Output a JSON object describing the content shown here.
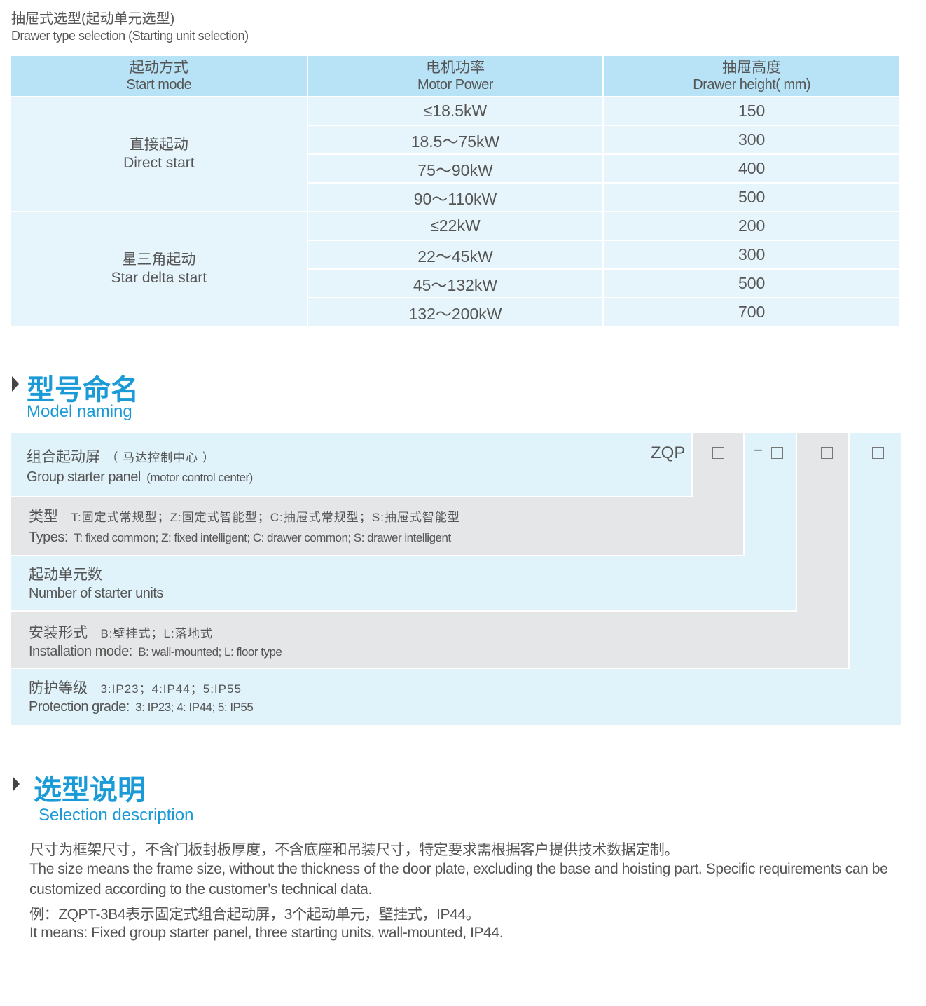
{
  "intro": {
    "title_cn": "抽屉式选型(起动单元选型)",
    "title_en": "Drawer type selection (Starting unit selection)"
  },
  "table": {
    "headers": [
      {
        "cn": "起动方式",
        "en": "Start mode"
      },
      {
        "cn": "电机功率",
        "en": "Motor Power"
      },
      {
        "cn": "抽屉高度",
        "en": "Drawer height( mm)"
      }
    ],
    "groups": [
      {
        "cn": "直接起动",
        "en": "Direct start",
        "rows": [
          [
            "≤18.5kW",
            "150"
          ],
          [
            "18.5～75kW",
            "300"
          ],
          [
            "75～90kW",
            "400"
          ],
          [
            "90～110kW",
            "500"
          ]
        ]
      },
      {
        "cn": "星三角起动",
        "en": "Star delta start",
        "rows": [
          [
            "≤22kW",
            "200"
          ],
          [
            "22～45kW",
            "300"
          ],
          [
            "45～132kW",
            "500"
          ],
          [
            "132～200kW",
            "700"
          ]
        ]
      }
    ]
  },
  "model_naming": {
    "title_cn": "型号命名",
    "title_en": "Model naming",
    "code_prefix": "ZQP",
    "dash": "−",
    "items": [
      {
        "cn": "组合起动屏",
        "cn_note": "（ 马达控制中心 ）",
        "en": "Group starter panel",
        "en_note": "(motor control center)"
      },
      {
        "cn": "类型",
        "cn_note": "T:固定式常规型；Z:固定式智能型；C:抽屉式常规型；S:抽屉式智能型",
        "en": "Types:",
        "en_note": "T: fixed common; Z: fixed intelligent; C: drawer common; S: drawer intelligent"
      },
      {
        "cn": "起动单元数",
        "cn_note": "",
        "en": "Number  of  starter units",
        "en_note": ""
      },
      {
        "cn": "安装形式",
        "cn_note": "B:壁挂式；L:落地式",
        "en": "Installation mode:",
        "en_note": "B: wall-mounted; L: floor type"
      },
      {
        "cn": "防护等级",
        "cn_note": "3:IP23；4:IP44；5:IP55",
        "en": "Protection grade:",
        "en_note": "3: IP23; 4: IP44; 5: IP55"
      }
    ],
    "colors": {
      "blue_band": "#e0f2fa",
      "gray_band": "#e5e6e8"
    }
  },
  "selection": {
    "title_cn": "选型说明",
    "title_en": "Selection description",
    "lines": [
      "尺寸为框架尺寸，不含门板封板厚度，不含底座和吊装尺寸，特定要求需根据客户提供技术数据定制。",
      "The size means the frame size, without the thickness of the door plate, excluding the base and hoisting part. Specific requirements can be",
      "customized according to the customer’s technical data.",
      "例：ZQPT-3B4表示固定式组合起动屏，3个起动单元，壁挂式，IP44。",
      "It means: Fixed group starter panel, three starting units, wall-mounted, IP44."
    ]
  },
  "colors": {
    "accent": "#1a9ad6",
    "table_header": "#b8e3f7",
    "table_body": "#e6f5fc"
  }
}
